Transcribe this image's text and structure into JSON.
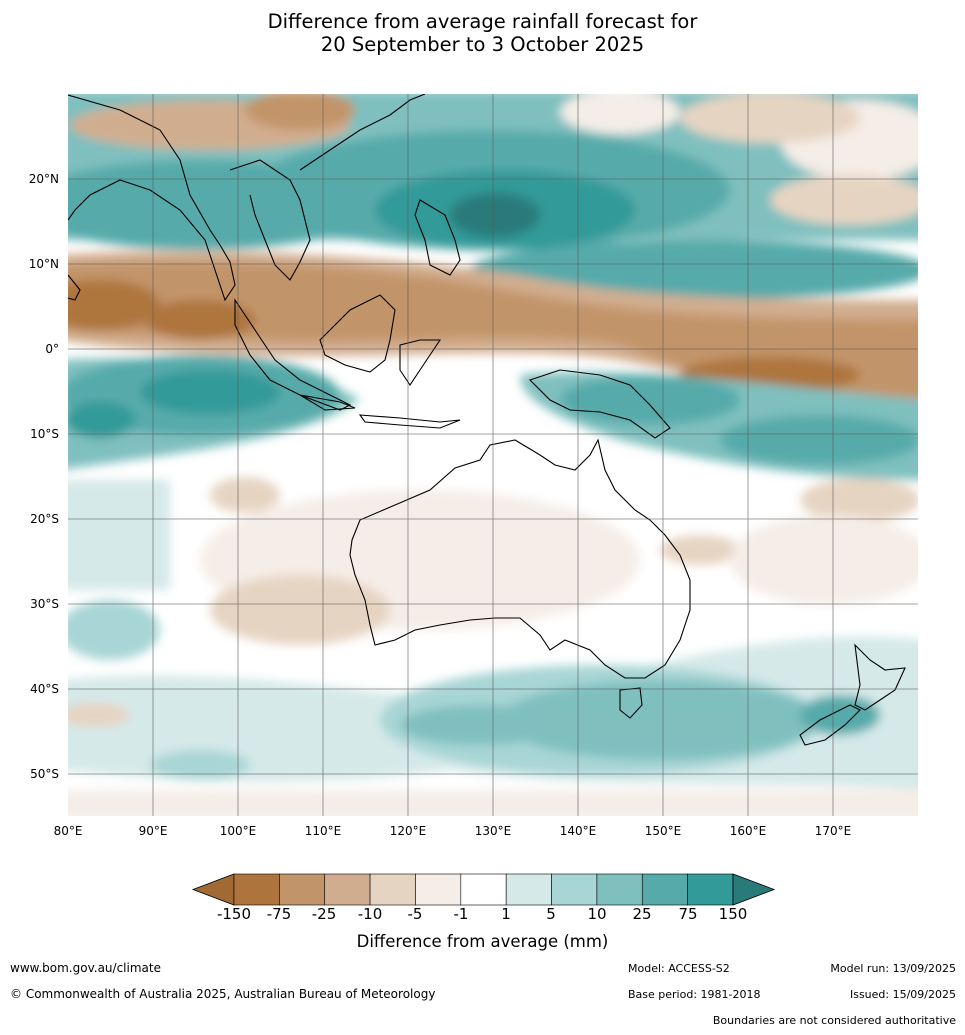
{
  "title": {
    "line1": "Difference from average rainfall forecast for",
    "line2": "20 September to 3 October 2025"
  },
  "map": {
    "lon_range": [
      80,
      180
    ],
    "lat_range": [
      -55,
      30
    ],
    "lon_ticks": [
      "80°E",
      "90°E",
      "100°E",
      "110°E",
      "120°E",
      "130°E",
      "140°E",
      "150°E",
      "160°E",
      "170°E"
    ],
    "lat_ticks": [
      "20°N",
      "10°N",
      "0°",
      "10°S",
      "20°S",
      "30°S",
      "40°S",
      "50°S"
    ],
    "gridlines": true
  },
  "colorbar": {
    "title": "Difference from average (mm)",
    "tick_labels": [
      "-150",
      "-75",
      "-25",
      "-10",
      "-5",
      "-1",
      "1",
      "5",
      "10",
      "25",
      "75",
      "150"
    ],
    "colors": [
      "#a16a35",
      "#ae743d",
      "#c29469",
      "#d1ad8f",
      "#e6d4c2",
      "#f5ede7",
      "#ffffff",
      "#d5e9e9",
      "#a8d5d5",
      "#7fc0bf",
      "#56aaaa",
      "#329a98",
      "#2a7a79"
    ],
    "extend": "both"
  },
  "footer": {
    "website": "www.bom.gov.au/climate",
    "copyright": "© Commonwealth of Australia 2025, Australian Bureau of Meteorology",
    "model": "Model: ACCESS-S2",
    "base_period": "Base period: 1981-2018",
    "model_run": "Model run: 13/09/2025",
    "issued": "Issued: 15/09/2025",
    "disclaimer": "Boundaries are not considered authoritative"
  }
}
